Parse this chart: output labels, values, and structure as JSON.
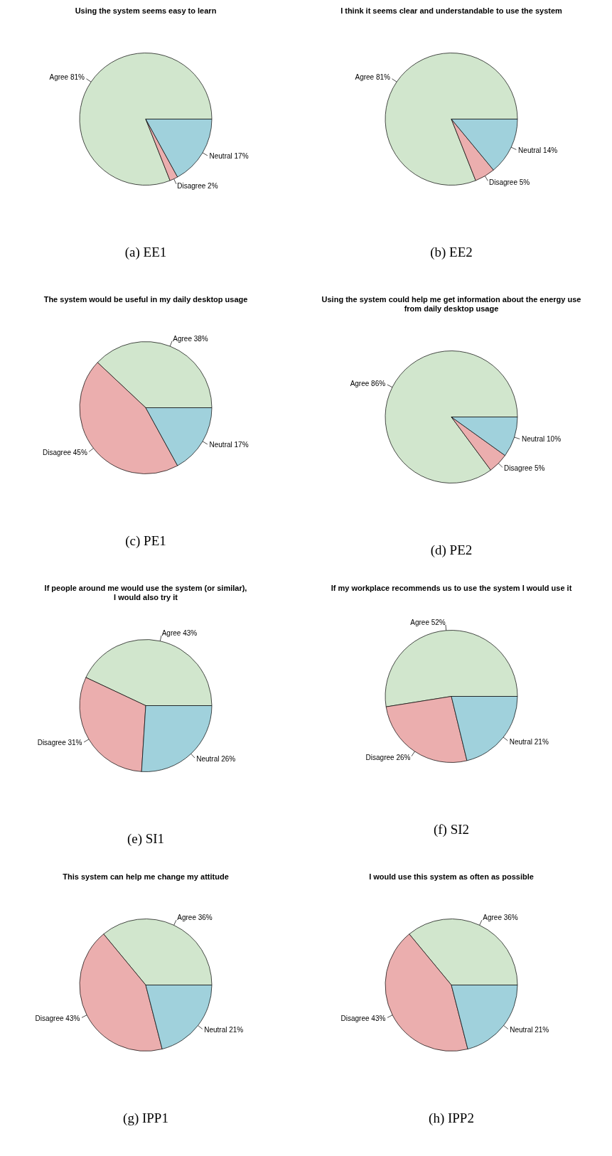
{
  "chart_data": [
    {
      "type": "pie",
      "title": "Using the system seems easy to learn",
      "categories": [
        "Agree 81%",
        "Disagree 2%",
        "Neutral 17%"
      ],
      "values": [
        81,
        2,
        17
      ],
      "colors": [
        "#d1e6cd",
        "#ebaeae",
        "#a0d1dc"
      ],
      "annotations": [
        "(a) EE1"
      ]
    },
    {
      "type": "pie",
      "title": "I think it seems clear and understandable to use the system",
      "categories": [
        "Agree 81%",
        "Disagree 5%",
        "Neutral 14%"
      ],
      "values": [
        81,
        5,
        14
      ],
      "colors": [
        "#d1e6cd",
        "#ebaeae",
        "#a0d1dc"
      ],
      "annotations": [
        "(b) EE2"
      ]
    },
    {
      "type": "pie",
      "title": "The system would be useful in my daily desktop usage",
      "categories": [
        "Agree 38%",
        "Disagree 45%",
        "Neutral 17%"
      ],
      "values": [
        38,
        45,
        17
      ],
      "colors": [
        "#d1e6cd",
        "#ebaeae",
        "#a0d1dc"
      ],
      "annotations": [
        "(c) PE1"
      ]
    },
    {
      "type": "pie",
      "title": "Using the system could help me get information about the energy use\nfrom daily desktop usage",
      "categories": [
        "Agree 86%",
        "Disagree 5%",
        "Neutral 10%"
      ],
      "values": [
        86,
        5,
        10
      ],
      "colors": [
        "#d1e6cd",
        "#ebaeae",
        "#a0d1dc"
      ],
      "annotations": [
        "(d) PE2"
      ]
    },
    {
      "type": "pie",
      "title": "If people around me would use the system (or similar),\nI would also try it",
      "categories": [
        "Agree 43%",
        "Disagree 31%",
        "Neutral 26%"
      ],
      "values": [
        43,
        31,
        26
      ],
      "colors": [
        "#d1e6cd",
        "#ebaeae",
        "#a0d1dc"
      ],
      "annotations": [
        "(e) SI1"
      ]
    },
    {
      "type": "pie",
      "title": "If my workplace recommends us to use the system I would use it",
      "categories": [
        "Agree 52%",
        "Disagree 26%",
        "Neutral 21%"
      ],
      "values": [
        52,
        26,
        21
      ],
      "colors": [
        "#d1e6cd",
        "#ebaeae",
        "#a0d1dc"
      ],
      "annotations": [
        "(f) SI2"
      ]
    },
    {
      "type": "pie",
      "title": "This system can help me change my attitude",
      "categories": [
        "Agree 36%",
        "Disagree 43%",
        "Neutral 21%"
      ],
      "values": [
        36,
        43,
        21
      ],
      "colors": [
        "#d1e6cd",
        "#ebaeae",
        "#a0d1dc"
      ],
      "annotations": [
        "(g) IPP1"
      ]
    },
    {
      "type": "pie",
      "title": "I would use this system as often as possible",
      "categories": [
        "Agree 36%",
        "Disagree 43%",
        "Neutral 21%"
      ],
      "values": [
        36,
        43,
        21
      ],
      "colors": [
        "#d1e6cd",
        "#ebaeae",
        "#a0d1dc"
      ],
      "annotations": [
        "(h) IPP2"
      ]
    }
  ]
}
